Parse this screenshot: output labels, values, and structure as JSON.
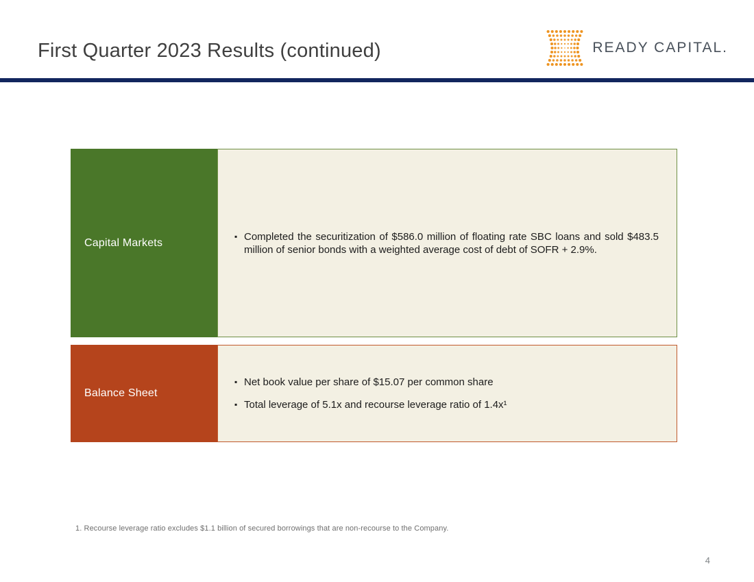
{
  "header": {
    "title": "First Quarter 2023 Results (continued)",
    "logo_text": "READY CAPITAL."
  },
  "rows": [
    {
      "label": "Capital Markets",
      "bullets": [
        "Completed the securitization of $586.0 million of floating rate SBC loans and sold $483.5 million of senior bonds with a weighted average cost of debt of SOFR + 2.9%."
      ]
    },
    {
      "label": "Balance Sheet",
      "bullets": [
        "Net book value per share of $15.07 per common share",
        "Total leverage of 5.1x and recourse leverage ratio of 1.4x¹"
      ]
    }
  ],
  "footnote": "1. Recourse leverage ratio excludes $1.1 billion of secured borrowings that are non-recourse to the Company.",
  "page_number": "4",
  "colors": {
    "accent_navy": "#12265e",
    "band_green": "#4a7729",
    "band_rust": "#b5441c",
    "panel_beige": "#f3f0e3",
    "logo_orange": "#ee9421"
  }
}
